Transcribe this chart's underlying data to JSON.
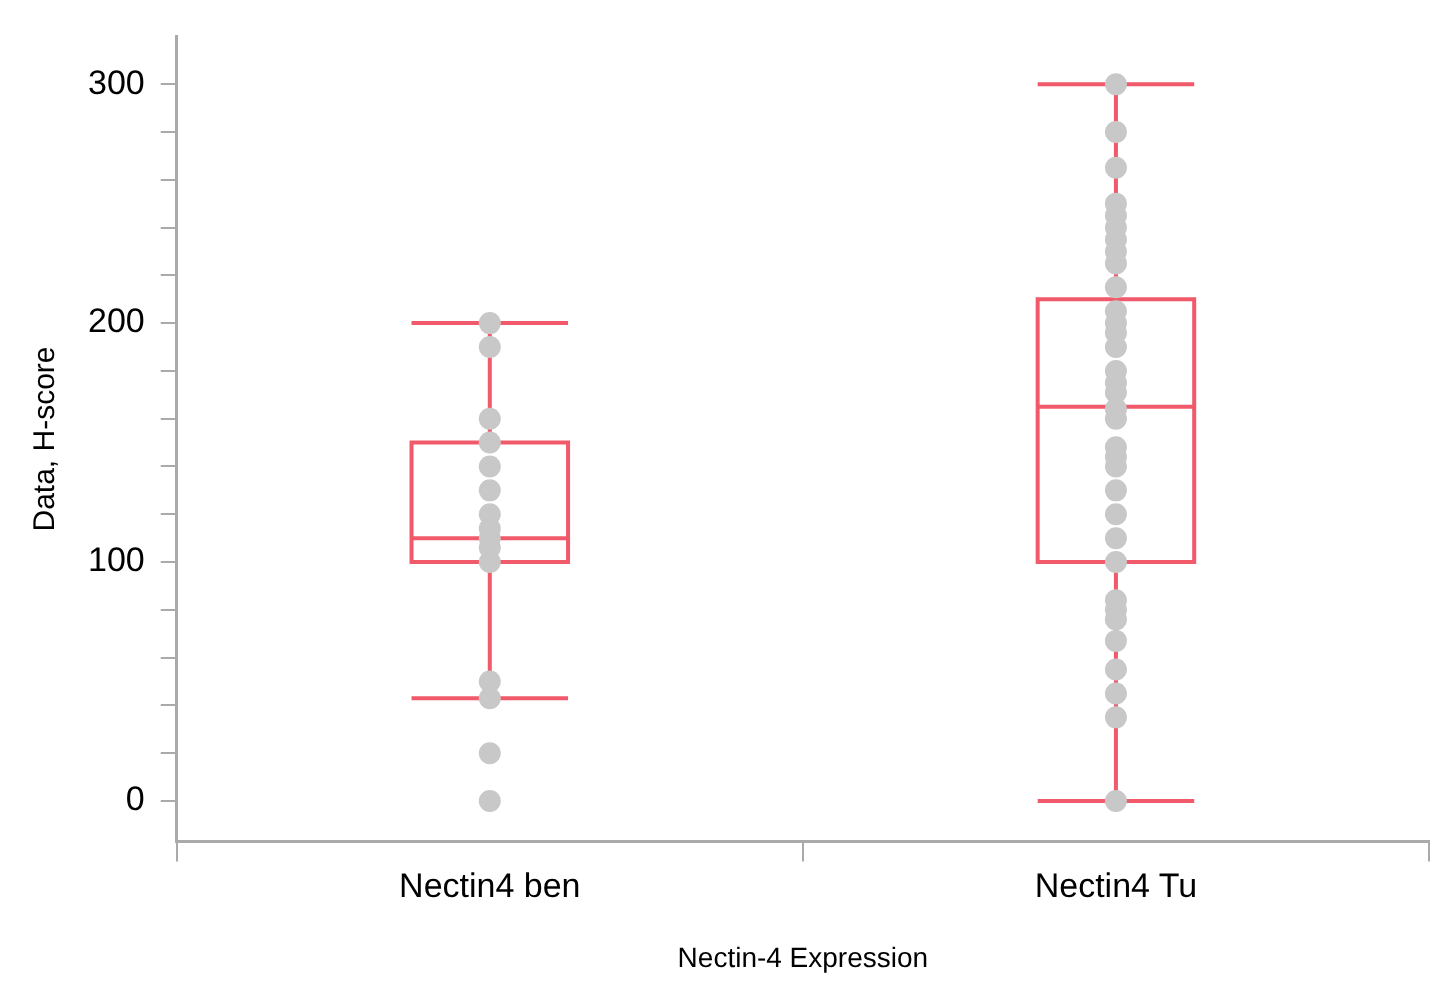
{
  "chart_data": {
    "type": "box",
    "xlabel": "Nectin-4 Expression",
    "ylabel": "Data, H-score",
    "categories": [
      "Nectin4 ben",
      "Nectin4 Tu"
    ],
    "color": "#f05a6a",
    "boxes": [
      {
        "low": 43,
        "q1": 100,
        "median": 110,
        "q3": 150,
        "high": 200
      },
      {
        "low": 0,
        "q1": 100,
        "median": 165,
        "q3": 210,
        "high": 300
      }
    ],
    "series": [
      {
        "type": "scatter",
        "color": "#c8c8c8",
        "x": [
          "Nectin4 ben",
          "Nectin4 ben",
          "Nectin4 ben",
          "Nectin4 ben",
          "Nectin4 ben",
          "Nectin4 ben",
          "Nectin4 ben",
          "Nectin4 ben",
          "Nectin4 ben",
          "Nectin4 ben",
          "Nectin4 ben",
          "Nectin4 ben",
          "Nectin4 ben",
          "Nectin4 ben",
          "Nectin4 ben",
          "Nectin4 ben"
        ],
        "values": [
          200,
          190,
          160,
          150,
          140,
          null,
          130,
          120,
          114,
          110,
          106,
          100,
          50,
          43,
          20,
          0
        ]
      },
      {
        "type": "scatter",
        "color": "#c8c8c8",
        "x": [
          "Nectin4 Tu",
          "Nectin4 Tu",
          "Nectin4 Tu",
          "Nectin4 Tu",
          "Nectin4 Tu",
          "Nectin4 Tu",
          "Nectin4 Tu",
          "Nectin4 Tu",
          "Nectin4 Tu",
          "Nectin4 Tu",
          "Nectin4 Tu",
          "Nectin4 Tu",
          "Nectin4 Tu",
          "Nectin4 Tu",
          "Nectin4 Tu",
          "Nectin4 Tu",
          "Nectin4 Tu",
          "Nectin4 Tu",
          "Nectin4 Tu",
          "Nectin4 Tu",
          "Nectin4 Tu",
          "Nectin4 Tu",
          "Nectin4 Tu",
          "Nectin4 Tu",
          "Nectin4 Tu",
          "Nectin4 Tu",
          "Nectin4 Tu",
          "Nectin4 Tu",
          "Nectin4 Tu",
          "Nectin4 Tu",
          "Nectin4 Tu",
          "Nectin4 Tu",
          "Nectin4 Tu",
          "Nectin4 Tu",
          "Nectin4 Tu"
        ],
        "values": [
          300,
          280,
          265,
          250,
          245,
          240,
          235,
          230,
          225,
          215,
          205,
          200,
          196,
          190,
          180,
          175,
          171,
          164,
          160,
          null,
          148,
          144,
          140,
          130,
          120,
          110,
          100,
          84,
          80,
          76,
          67,
          55,
          45,
          35,
          0
        ]
      }
    ],
    "ylim": [
      -17,
      320
    ],
    "yticks": [
      0,
      {
        "value": 20,
        "label": null
      },
      {
        "value": 40,
        "label": null
      },
      {
        "value": 60,
        "label": null
      },
      {
        "value": 80,
        "label": null
      },
      100,
      {
        "value": 120,
        "label": null
      },
      {
        "value": 140,
        "label": null
      },
      {
        "value": 160,
        "label": null
      },
      {
        "value": 180,
        "label": null
      },
      200,
      {
        "value": 220,
        "label": null
      },
      {
        "value": 240,
        "label": null
      },
      {
        "value": 260,
        "label": null
      },
      {
        "value": 280,
        "label": null
      },
      300
    ],
    "grid": false,
    "legend": false,
    "marker": "circle"
  }
}
